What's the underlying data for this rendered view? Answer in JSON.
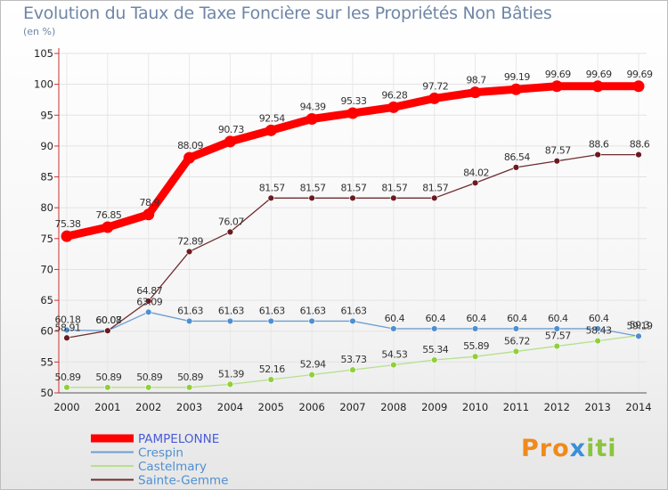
{
  "title": "Evolution du Taux de Taxe Foncière sur les Propriétés Non Bâties",
  "unit_label": "(en %)",
  "logo": {
    "parts": [
      "Pro",
      "x",
      "iti"
    ]
  },
  "chart_data": {
    "type": "line",
    "title": "Evolution du Taux de Taxe Foncière sur les Propriétés Non Bâties",
    "ylabel": "(en %)",
    "xlabel": "",
    "x": [
      "2000",
      "2001",
      "2002",
      "2003",
      "2004",
      "2005",
      "2006",
      "2007",
      "2008",
      "2009",
      "2010",
      "2011",
      "2012",
      "2013",
      "2014"
    ],
    "yticks": [
      "50",
      "55",
      "60",
      "65",
      "70",
      "75",
      "80",
      "85",
      "90",
      "95",
      "100",
      "105"
    ],
    "ylim": [
      50,
      105
    ],
    "legend_position": "bottom-left",
    "series": [
      {
        "name": "PAMPELONNE",
        "color": "#ff0000",
        "point_color": "#ff0000",
        "values": [
          75.38,
          76.85,
          78.9,
          88.09,
          90.73,
          92.54,
          94.39,
          95.33,
          96.28,
          97.72,
          98.7,
          99.19,
          99.69,
          99.69,
          99.69
        ],
        "labels": [
          "75.38",
          "76.85",
          "78.9",
          "88.09",
          "90.73",
          "92.54",
          "94.39",
          "95.33",
          "96.28",
          "97.72",
          "98.7",
          "99.19",
          "99.69",
          "99.69",
          "99.69"
        ]
      },
      {
        "name": "Crespin",
        "color": "#6d9ed0",
        "point_color": "#4f8fd0",
        "values": [
          60.18,
          60.08,
          63.09,
          61.63,
          61.63,
          61.63,
          61.63,
          61.63,
          60.4,
          60.4,
          60.4,
          60.4,
          60.4,
          60.4,
          59.19
        ],
        "labels": [
          "60.18",
          "60.08",
          "63.09",
          "61.63",
          "61.63",
          "61.63",
          "61.63",
          "61.63",
          "60.4",
          "60.4",
          "60.4",
          "60.4",
          "60.4",
          "60.4",
          "59.19"
        ]
      },
      {
        "name": "Castelmary",
        "color": "#b6e08a",
        "point_color": "#8fd03a",
        "values": [
          50.89,
          50.89,
          50.89,
          50.89,
          51.39,
          52.16,
          52.94,
          53.73,
          54.53,
          55.34,
          55.89,
          56.72,
          57.57,
          58.43,
          59.3
        ],
        "labels": [
          "50.89",
          "50.89",
          "50.89",
          "50.89",
          "51.39",
          "52.16",
          "52.94",
          "53.73",
          "54.53",
          "55.34",
          "55.89",
          "56.72",
          "57.57",
          "58.43",
          "59.3"
        ]
      },
      {
        "name": "Sainte-Gemme",
        "color": "#6e2c30",
        "point_color": "#6a1a20",
        "values": [
          58.91,
          60.07,
          64.87,
          72.89,
          76.07,
          81.57,
          81.57,
          81.57,
          81.57,
          81.57,
          84.02,
          86.54,
          87.57,
          88.6,
          88.6
        ],
        "labels": [
          "58.91",
          "60.07",
          "64.87",
          "72.89",
          "76.07",
          "81.57",
          "81.57",
          "81.57",
          "81.57",
          "81.57",
          "84.02",
          "86.54",
          "87.57",
          "88.6",
          "88.6"
        ]
      }
    ]
  }
}
